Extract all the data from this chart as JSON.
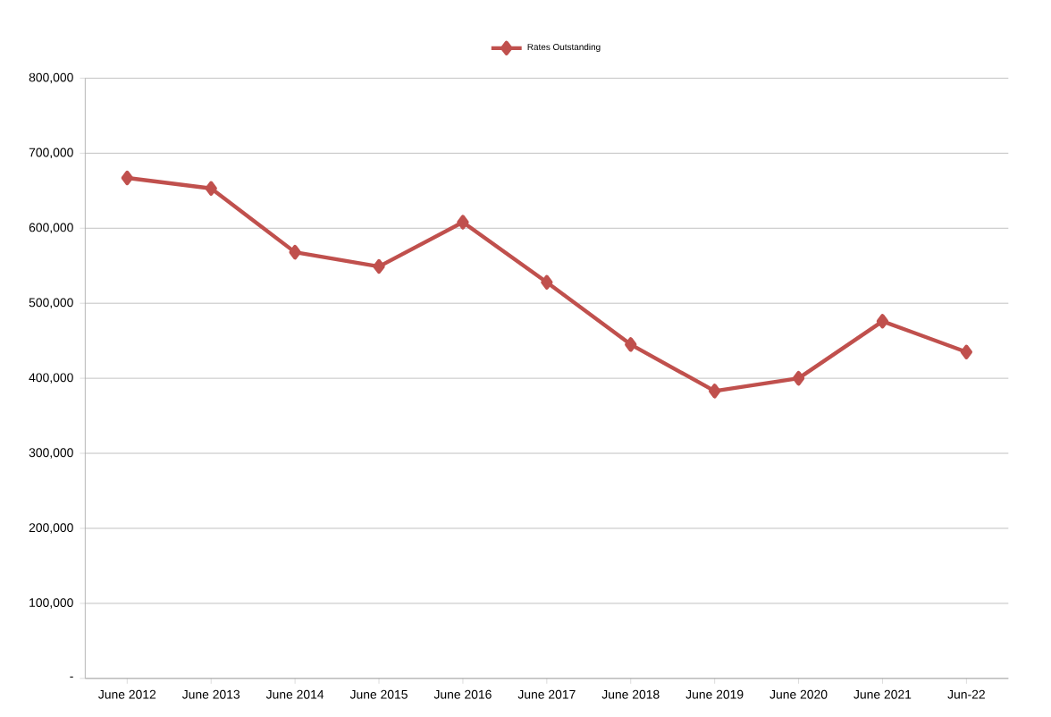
{
  "chart_data": {
    "type": "line",
    "categories": [
      "June 2012",
      "June 2013",
      "June 2014",
      "June 2015",
      "June 2016",
      "June 2017",
      "June 2018",
      "June 2019",
      "June 2020",
      "June 2021",
      "Jun-22"
    ],
    "series": [
      {
        "name": "Rates Outstanding",
        "color": "#c0504d",
        "values": [
          667000,
          653000,
          568000,
          549000,
          608000,
          528000,
          445000,
          383000,
          400000,
          476000,
          435000
        ]
      }
    ],
    "ylim": [
      0,
      800000
    ],
    "yticks": [
      {
        "value": 0,
        "label": "-"
      },
      {
        "value": 100000,
        "label": "100,000"
      },
      {
        "value": 200000,
        "label": "200,000"
      },
      {
        "value": 300000,
        "label": "300,000"
      },
      {
        "value": 400000,
        "label": "400,000"
      },
      {
        "value": 500000,
        "label": "500,000"
      },
      {
        "value": 600000,
        "label": "600,000"
      },
      {
        "value": 700000,
        "label": "700,000"
      },
      {
        "value": 800000,
        "label": "800,000"
      }
    ],
    "grid": "y",
    "legend": "top",
    "marker": "diamond",
    "line_style": "solid"
  }
}
